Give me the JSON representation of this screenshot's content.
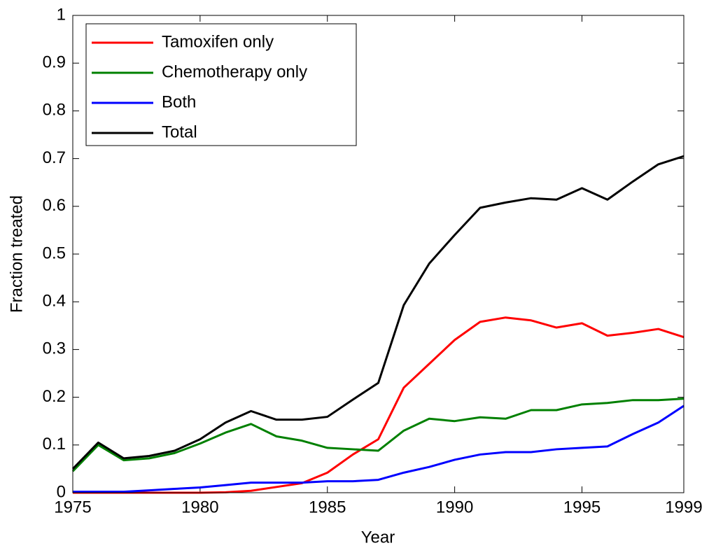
{
  "chart_data": {
    "type": "line",
    "x": [
      1975,
      1976,
      1977,
      1978,
      1979,
      1980,
      1981,
      1982,
      1983,
      1984,
      1985,
      1986,
      1987,
      1988,
      1989,
      1990,
      1991,
      1992,
      1993,
      1994,
      1995,
      1996,
      1997,
      1998,
      1999
    ],
    "series": [
      {
        "name": "Tamoxifen only",
        "color": "#ff0000",
        "values": [
          0,
          0,
          0,
          0,
          0,
          0,
          0.001,
          0.004,
          0.012,
          0.02,
          0.042,
          0.08,
          0.112,
          0.22,
          0.27,
          0.32,
          0.358,
          0.367,
          0.361,
          0.346,
          0.355,
          0.329,
          0.335,
          0.343,
          0.326
        ]
      },
      {
        "name": "Chemotherapy only",
        "color": "#008000",
        "values": [
          0.045,
          0.1,
          0.068,
          0.072,
          0.083,
          0.103,
          0.126,
          0.144,
          0.118,
          0.109,
          0.094,
          0.091,
          0.088,
          0.13,
          0.155,
          0.15,
          0.158,
          0.155,
          0.173,
          0.173,
          0.185,
          0.188,
          0.194,
          0.194,
          0.197
        ]
      },
      {
        "name": "Both",
        "color": "#0000ff",
        "values": [
          0.002,
          0.002,
          0.002,
          0.005,
          0.008,
          0.011,
          0.016,
          0.021,
          0.021,
          0.021,
          0.024,
          0.024,
          0.027,
          0.042,
          0.054,
          0.069,
          0.08,
          0.085,
          0.085,
          0.091,
          0.094,
          0.097,
          0.123,
          0.147,
          0.182
        ]
      },
      {
        "name": "Total",
        "color": "#000000",
        "values": [
          0.05,
          0.105,
          0.072,
          0.077,
          0.088,
          0.112,
          0.147,
          0.171,
          0.153,
          0.153,
          0.159,
          0.195,
          0.23,
          0.393,
          0.48,
          0.54,
          0.597,
          0.608,
          0.617,
          0.614,
          0.638,
          0.614,
          0.652,
          0.688,
          0.705
        ]
      }
    ],
    "x_label": "Year",
    "y_label": "Fraction treated",
    "xlim": [
      1975,
      1999
    ],
    "xticks": [
      1975,
      1980,
      1985,
      1990,
      1995,
      1999
    ],
    "ylim": [
      0,
      1
    ],
    "yticks": [
      0,
      0.1,
      0.2,
      0.3,
      0.4,
      0.5,
      0.6,
      0.7,
      0.8,
      0.9,
      1
    ],
    "legend": "upper left"
  }
}
